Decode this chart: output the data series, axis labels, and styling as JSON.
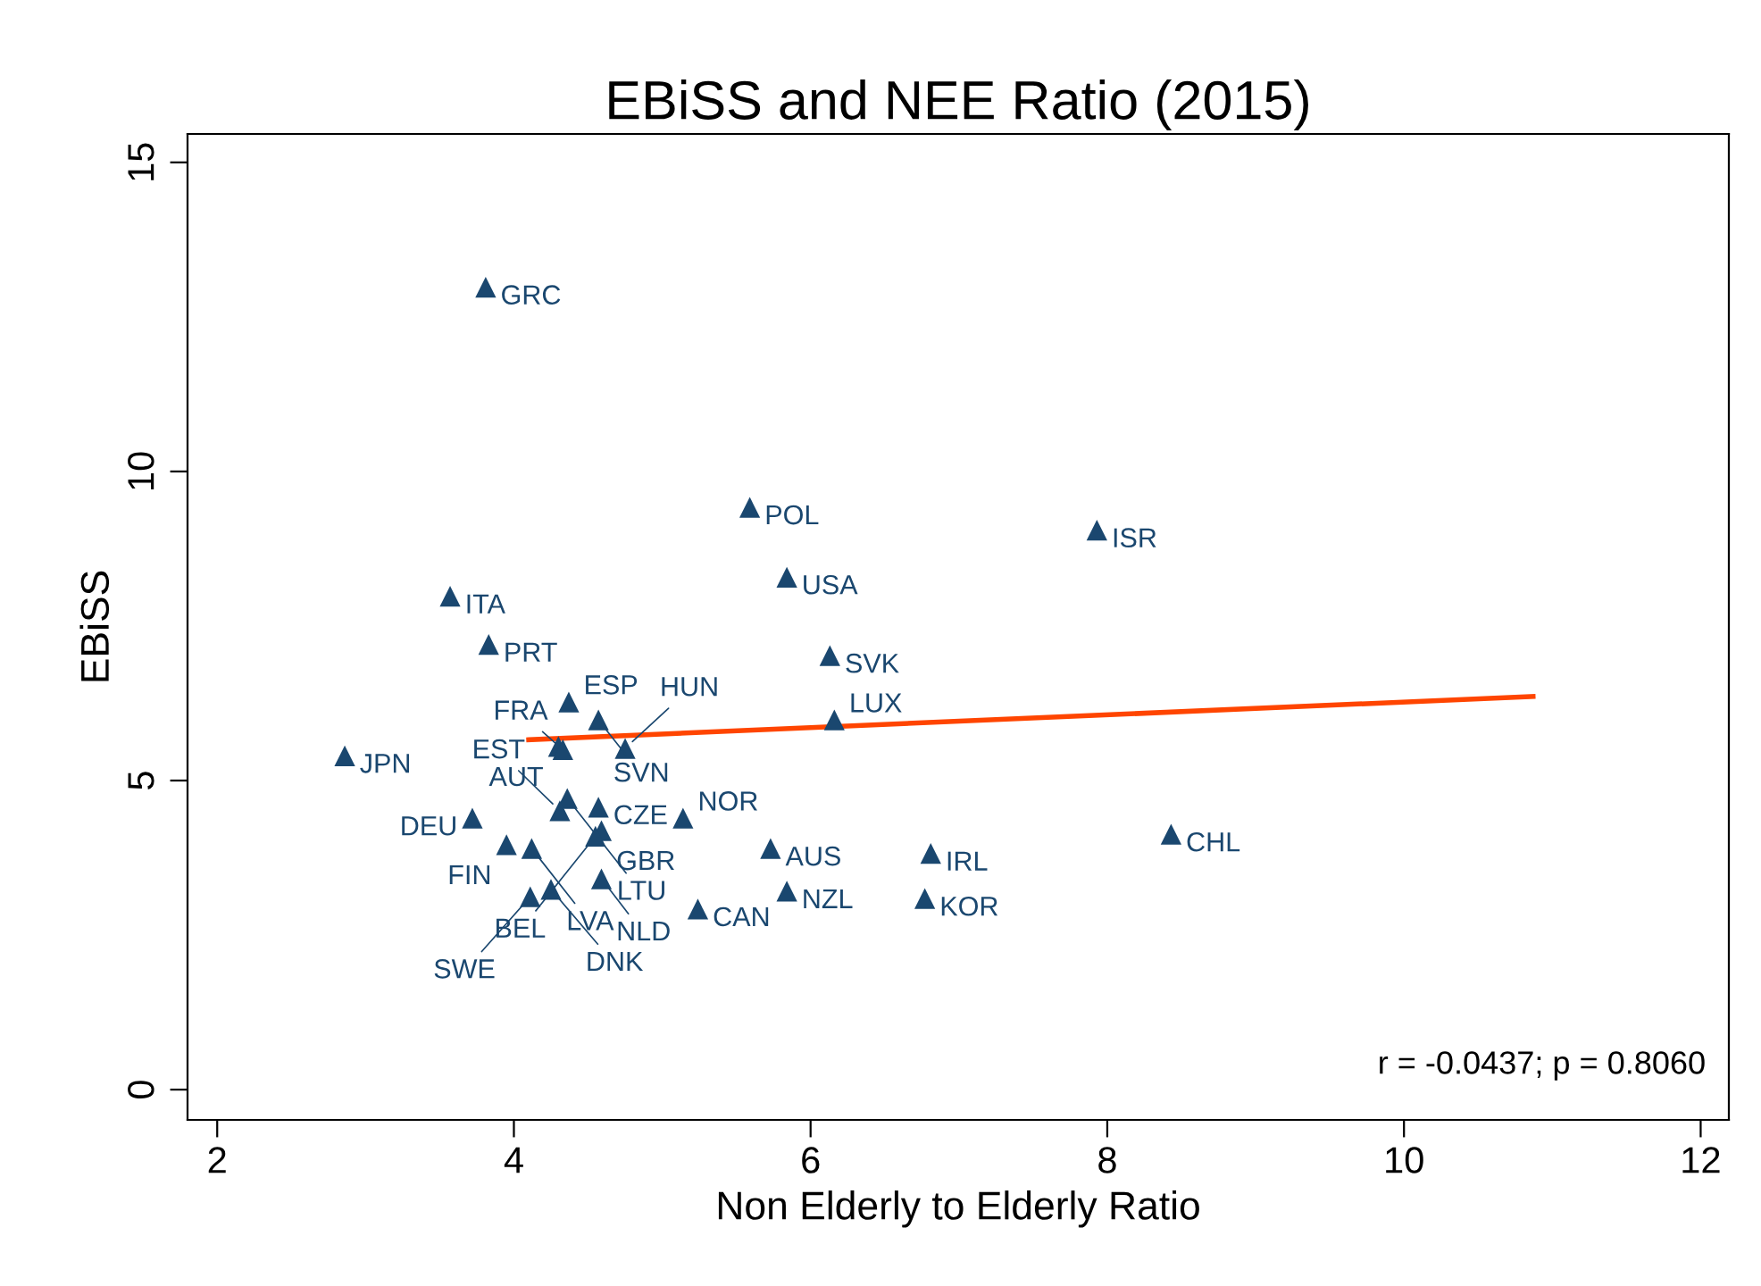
{
  "chart_data": {
    "type": "scatter",
    "title": "EBiSS and NEE Ratio (2015)",
    "xlabel": "Non Elderly to Elderly Ratio",
    "ylabel": "EBiSS",
    "xlim": [
      1.8,
      12.19
    ],
    "ylim": [
      -0.49,
      15.46
    ],
    "xticks": [
      2,
      4,
      6,
      8,
      10,
      12
    ],
    "yticks": [
      0,
      5,
      10,
      15
    ],
    "grid": false,
    "legend": false,
    "series": [
      {
        "marker": "triangle",
        "color": "#1a476f",
        "x": [
          3.81,
          5.59,
          7.93,
          3.57,
          5.84,
          3.83,
          6.13,
          4.37,
          4.57,
          6.16,
          4.3,
          4.33,
          4.75,
          2.86,
          8.43,
          4.36,
          4.31,
          4.57,
          5.14,
          3.72,
          4.59,
          4.55,
          3.95,
          4.12,
          5.73,
          6.81,
          4.59,
          4.25,
          4.11,
          5.84,
          5.24,
          6.77
        ],
        "values": [
          12.98,
          9.42,
          9.05,
          7.98,
          8.29,
          7.2,
          7.02,
          6.27,
          5.98,
          5.98,
          5.55,
          5.5,
          5.52,
          5.4,
          4.13,
          4.71,
          4.51,
          4.57,
          4.39,
          4.39,
          4.19,
          4.1,
          3.96,
          3.9,
          3.9,
          3.82,
          3.41,
          3.24,
          3.12,
          3.21,
          2.92,
          3.09
        ]
      },
      {
        "type": "line",
        "color": "#ff4500",
        "x": [
          4.1,
          10.87
        ],
        "values": [
          5.66,
          6.36
        ]
      }
    ],
    "annotations": [
      {
        "text": "GRC",
        "x": 3.81,
        "y": 12.98
      },
      {
        "text": "POL",
        "x": 5.59,
        "y": 9.42
      },
      {
        "text": "ISR",
        "x": 7.93,
        "y": 9.05
      },
      {
        "text": "ITA",
        "x": 3.57,
        "y": 7.98
      },
      {
        "text": "USA",
        "x": 5.84,
        "y": 8.29
      },
      {
        "text": "PRT",
        "x": 3.83,
        "y": 7.2
      },
      {
        "text": "SVK",
        "x": 6.13,
        "y": 7.02
      },
      {
        "text": "ESP",
        "x": 4.37,
        "y": 6.27
      },
      {
        "text": "SVN",
        "x": 4.57,
        "y": 5.98
      },
      {
        "text": "LUX",
        "x": 6.16,
        "y": 5.98
      },
      {
        "text": "AUT",
        "x": 4.3,
        "y": 5.55
      },
      {
        "text": "FRA",
        "x": 4.33,
        "y": 5.5
      },
      {
        "text": "HUN",
        "x": 4.75,
        "y": 5.52
      },
      {
        "text": "JPN",
        "x": 2.86,
        "y": 5.4
      },
      {
        "text": "CHL",
        "x": 8.43,
        "y": 4.13
      },
      {
        "text": "LTU",
        "x": 4.36,
        "y": 4.71
      },
      {
        "text": "EST",
        "x": 4.31,
        "y": 4.51
      },
      {
        "text": "CZE",
        "x": 4.57,
        "y": 4.57
      },
      {
        "text": "NOR",
        "x": 5.14,
        "y": 4.39
      },
      {
        "text": "DEU",
        "x": 3.72,
        "y": 4.39
      },
      {
        "text": "GBR",
        "x": 4.59,
        "y": 4.19
      },
      {
        "text": "BEL",
        "x": 4.55,
        "y": 4.1
      },
      {
        "text": "FIN",
        "x": 3.95,
        "y": 3.96
      },
      {
        "text": "LVA",
        "x": 4.12,
        "y": 3.9
      },
      {
        "text": "AUS",
        "x": 5.73,
        "y": 3.9
      },
      {
        "text": "IRL",
        "x": 6.81,
        "y": 3.82
      },
      {
        "text": "NLD",
        "x": 4.59,
        "y": 3.41
      },
      {
        "text": "DNK",
        "x": 4.25,
        "y": 3.24
      },
      {
        "text": "SWE",
        "x": 4.11,
        "y": 3.12
      },
      {
        "text": "NZL",
        "x": 5.84,
        "y": 3.21
      },
      {
        "text": "CAN",
        "x": 5.24,
        "y": 2.92
      },
      {
        "text": "KOR",
        "x": 6.77,
        "y": 3.09
      },
      "r = -0.0437; p = 0.8060"
    ]
  }
}
